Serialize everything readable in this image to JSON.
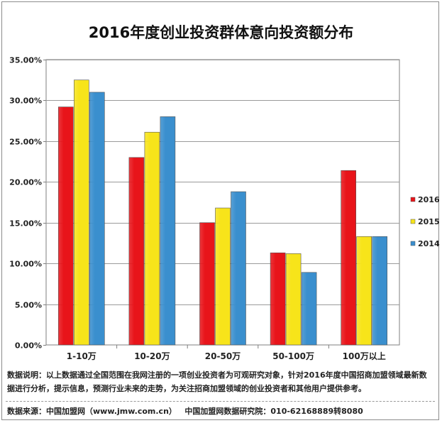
{
  "chart_data": {
    "type": "bar",
    "title": "2016年度创业投资群体意向投资额分布",
    "categories": [
      "1-10万",
      "10-20万",
      "20-50万",
      "50-100万",
      "100万以上"
    ],
    "series": [
      {
        "name": "2016",
        "color": "#e8141a",
        "values": [
          29.2,
          23.0,
          15.0,
          11.3,
          21.4
        ]
      },
      {
        "name": "2015",
        "color": "#f7e41a",
        "values": [
          32.5,
          26.1,
          16.8,
          11.2,
          13.3
        ]
      },
      {
        "name": "2014",
        "color": "#3a8fce",
        "values": [
          31.0,
          28.0,
          18.8,
          8.9,
          13.3
        ]
      }
    ],
    "ylim": [
      0,
      35
    ],
    "yticks": [
      "0.00%",
      "5.00%",
      "10.00%",
      "15.00%",
      "20.00%",
      "25.00%",
      "30.00%",
      "35.00%"
    ],
    "ytick_values": [
      0,
      5,
      10,
      15,
      20,
      25,
      30,
      35
    ],
    "grid": true,
    "legend_position": "right"
  },
  "footer": {
    "note": "数据说明：以上数据通过全国范围在我网注册的一项创业投资者为可观研究对象，针对2016年度中国招商加盟领域最新数据进行分析，提示信息，预测行业未来的走势，为关注招商加盟领域的创业投资者和其他用户提供参考。",
    "source": "数据来源：中国加盟网（www.jmw.com.cn）   中国加盟网数据研究院：010-62168889转8080"
  }
}
